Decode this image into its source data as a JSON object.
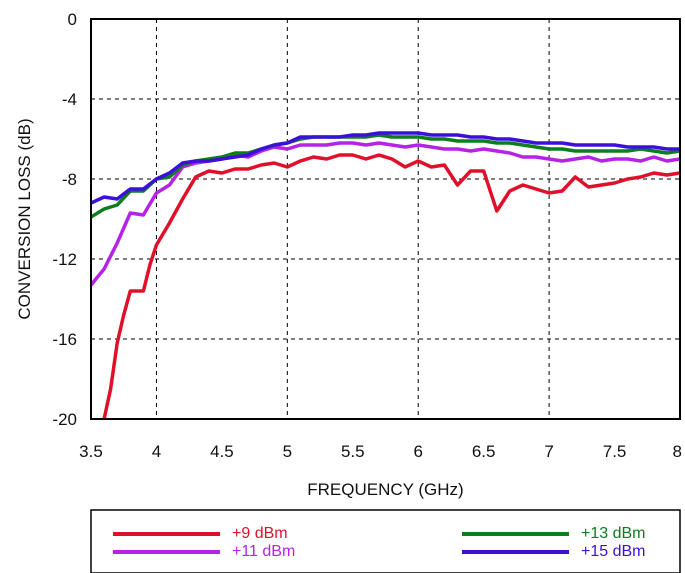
{
  "chart_data": {
    "type": "line",
    "title": "",
    "xlabel": "FREQUENCY (GHz)",
    "ylabel": "CONVERSION LOSS (dB)",
    "xlim": [
      3.5,
      8
    ],
    "ylim": [
      -20,
      0
    ],
    "x_ticks": [
      "3.5",
      "4",
      "4.5",
      "5",
      "5.5",
      "6",
      "6.5",
      "7",
      "7.5",
      "8"
    ],
    "y_ticks": [
      "0",
      "-4",
      "-8",
      "-12",
      "-16",
      "-20"
    ],
    "grid": true,
    "legend_position": "bottom",
    "series": [
      {
        "name": "+9 dBm",
        "color": "#e0102a",
        "x": [
          3.6,
          3.65,
          3.7,
          3.75,
          3.8,
          3.85,
          3.9,
          3.95,
          4.0,
          4.1,
          4.2,
          4.3,
          4.4,
          4.5,
          4.6,
          4.7,
          4.8,
          4.9,
          5.0,
          5.1,
          5.2,
          5.3,
          5.4,
          5.5,
          5.6,
          5.7,
          5.8,
          5.9,
          6.0,
          6.1,
          6.2,
          6.3,
          6.4,
          6.5,
          6.6,
          6.7,
          6.8,
          6.9,
          7.0,
          7.1,
          7.2,
          7.3,
          7.4,
          7.5,
          7.6,
          7.7,
          7.8,
          7.9,
          8.0
        ],
        "values": [
          -20.0,
          -18.5,
          -16.2,
          -14.8,
          -13.6,
          -13.6,
          -13.6,
          -12.3,
          -11.3,
          -10.2,
          -9.0,
          -7.9,
          -7.6,
          -7.7,
          -7.5,
          -7.5,
          -7.3,
          -7.2,
          -7.4,
          -7.1,
          -6.9,
          -7.0,
          -6.8,
          -6.8,
          -7.0,
          -6.8,
          -7.0,
          -7.4,
          -7.1,
          -7.4,
          -7.3,
          -8.3,
          -7.6,
          -7.6,
          -9.6,
          -8.6,
          -8.3,
          -8.5,
          -8.7,
          -8.6,
          -7.9,
          -8.4,
          -8.3,
          -8.2,
          -8.0,
          -7.9,
          -7.7,
          -7.8,
          -7.7
        ]
      },
      {
        "name": "+11 dBm",
        "color": "#b523e6",
        "x": [
          3.5,
          3.6,
          3.7,
          3.8,
          3.9,
          4.0,
          4.1,
          4.2,
          4.3,
          4.4,
          4.5,
          4.6,
          4.7,
          4.8,
          4.9,
          5.0,
          5.1,
          5.2,
          5.3,
          5.4,
          5.5,
          5.6,
          5.7,
          5.8,
          5.9,
          6.0,
          6.1,
          6.2,
          6.3,
          6.4,
          6.5,
          6.6,
          6.7,
          6.8,
          6.9,
          7.0,
          7.1,
          7.2,
          7.3,
          7.4,
          7.5,
          7.6,
          7.7,
          7.8,
          7.9,
          8.0
        ],
        "values": [
          -13.3,
          -12.5,
          -11.2,
          -9.7,
          -9.8,
          -8.7,
          -8.3,
          -7.4,
          -7.2,
          -7.1,
          -7.0,
          -6.8,
          -6.9,
          -6.6,
          -6.4,
          -6.5,
          -6.3,
          -6.3,
          -6.3,
          -6.2,
          -6.2,
          -6.3,
          -6.2,
          -6.3,
          -6.4,
          -6.3,
          -6.4,
          -6.5,
          -6.5,
          -6.6,
          -6.5,
          -6.6,
          -6.7,
          -6.9,
          -6.9,
          -7.0,
          -7.1,
          -7.0,
          -6.9,
          -7.1,
          -7.0,
          -7.0,
          -7.1,
          -6.9,
          -7.1,
          -7.0
        ]
      },
      {
        "name": "+13 dBm",
        "color": "#0d7e1e",
        "x": [
          3.5,
          3.6,
          3.7,
          3.8,
          3.9,
          4.0,
          4.1,
          4.2,
          4.3,
          4.4,
          4.5,
          4.6,
          4.7,
          4.8,
          4.9,
          5.0,
          5.1,
          5.2,
          5.3,
          5.4,
          5.5,
          5.6,
          5.7,
          5.8,
          5.9,
          6.0,
          6.1,
          6.2,
          6.3,
          6.4,
          6.5,
          6.6,
          6.7,
          6.8,
          6.9,
          7.0,
          7.1,
          7.2,
          7.3,
          7.4,
          7.5,
          7.6,
          7.7,
          7.8,
          7.9,
          8.0
        ],
        "values": [
          -9.9,
          -9.5,
          -9.3,
          -8.6,
          -8.6,
          -8.0,
          -7.9,
          -7.3,
          -7.1,
          -7.0,
          -6.9,
          -6.7,
          -6.7,
          -6.5,
          -6.3,
          -6.2,
          -6.0,
          -5.9,
          -5.9,
          -5.9,
          -5.9,
          -5.9,
          -5.8,
          -5.9,
          -5.9,
          -5.9,
          -6.0,
          -6.0,
          -6.1,
          -6.1,
          -6.1,
          -6.2,
          -6.2,
          -6.3,
          -6.4,
          -6.5,
          -6.5,
          -6.6,
          -6.6,
          -6.6,
          -6.6,
          -6.6,
          -6.5,
          -6.6,
          -6.7,
          -6.6
        ]
      },
      {
        "name": "+15 dBm",
        "color": "#3c10d8",
        "x": [
          3.5,
          3.6,
          3.7,
          3.8,
          3.9,
          4.0,
          4.1,
          4.2,
          4.3,
          4.4,
          4.5,
          4.6,
          4.7,
          4.8,
          4.9,
          5.0,
          5.1,
          5.2,
          5.3,
          5.4,
          5.5,
          5.6,
          5.7,
          5.8,
          5.9,
          6.0,
          6.1,
          6.2,
          6.3,
          6.4,
          6.5,
          6.6,
          6.7,
          6.8,
          6.9,
          7.0,
          7.1,
          7.2,
          7.3,
          7.4,
          7.5,
          7.6,
          7.7,
          7.8,
          7.9,
          8.0
        ],
        "values": [
          -9.2,
          -8.9,
          -9.0,
          -8.5,
          -8.5,
          -8.0,
          -7.7,
          -7.2,
          -7.1,
          -7.1,
          -7.0,
          -6.9,
          -6.8,
          -6.5,
          -6.3,
          -6.2,
          -5.9,
          -5.9,
          -5.9,
          -5.9,
          -5.8,
          -5.8,
          -5.7,
          -5.7,
          -5.7,
          -5.7,
          -5.8,
          -5.8,
          -5.8,
          -5.9,
          -5.9,
          -6.0,
          -6.0,
          -6.1,
          -6.2,
          -6.2,
          -6.2,
          -6.3,
          -6.3,
          -6.3,
          -6.3,
          -6.4,
          -6.4,
          -6.4,
          -6.5,
          -6.5
        ]
      }
    ]
  }
}
